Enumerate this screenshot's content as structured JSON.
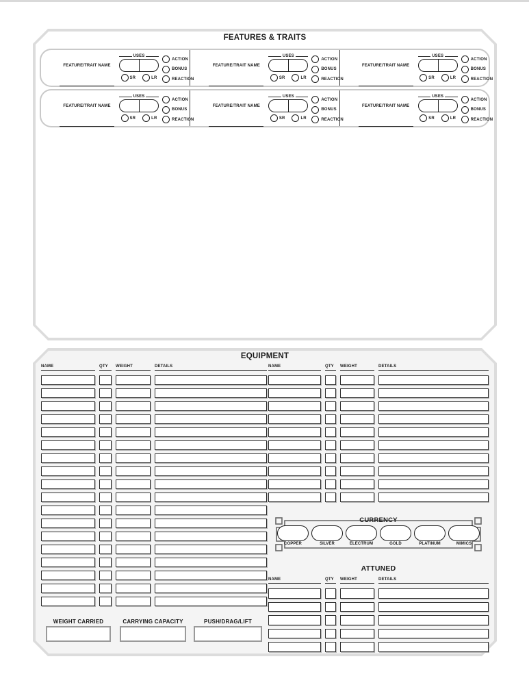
{
  "features_panel": {
    "title": "FEATURES & TRAITS",
    "rows": 2,
    "columns": 3,
    "block": {
      "name_label": "FEATURE/TRAIT NAME",
      "uses_label": "USES",
      "short_rest_label": "SR",
      "long_rest_label": "LR",
      "action_types": [
        "ACTION",
        "BONUS",
        "REACTION"
      ]
    }
  },
  "equipment_panel": {
    "title": "EQUIPMENT",
    "table_headers": [
      "NAME",
      "QTY",
      "WEIGHT",
      "DETAILS"
    ],
    "left_table_rows": 18,
    "right_table_rows": 10,
    "currency": {
      "title": "CURRENCY",
      "denominations": [
        "COPPER",
        "SILVER",
        "ELECTRUM",
        "GOLD",
        "PLATINUM",
        "MIMICS"
      ]
    },
    "attuned": {
      "title": "ATTUNED",
      "table_headers": [
        "NAME",
        "QTY",
        "WEIGHT",
        "DETAILS"
      ],
      "rows": 5
    },
    "summary": {
      "weight_carried": "WEIGHT CARRIED",
      "carrying_capacity": "CARRYING CAPACITY",
      "push_drag_lift": "PUSH/DRAG/LIFT"
    }
  },
  "colors": {
    "panel_border": "#dcdcdc",
    "equipment_background": "#f4f4f4",
    "ink": "#1a1a1a",
    "box_shadow": "#b3b3b3",
    "summary_border": "#9a9a9a",
    "currency_frame": "#666666"
  }
}
